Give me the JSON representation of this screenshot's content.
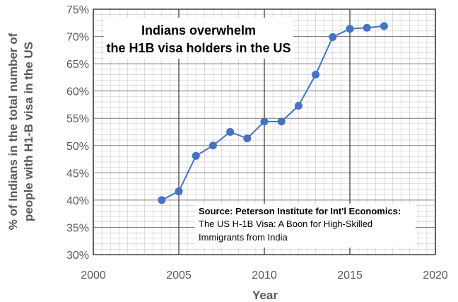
{
  "chart_data": {
    "type": "line",
    "title_lines": [
      "Indians overwhelm",
      "the H1B visa holders in the US"
    ],
    "xlabel": "Year",
    "ylabel_lines": [
      "% of Indians in the total number of",
      "people with H1-B visa in the US"
    ],
    "xlim": [
      2000,
      2020
    ],
    "ylim": [
      30,
      75
    ],
    "x_ticks": [
      2000,
      2005,
      2010,
      2015,
      2020
    ],
    "x_tick_labels": [
      "2000",
      "2005",
      "2010",
      "2015",
      "2020"
    ],
    "y_ticks": [
      30,
      35,
      40,
      45,
      50,
      55,
      60,
      65,
      70,
      75
    ],
    "y_tick_labels": [
      "30%",
      "35%",
      "40%",
      "45%",
      "50%",
      "55%",
      "60%",
      "65%",
      "70%",
      "75%"
    ],
    "grid": true,
    "series": [
      {
        "x": [
          2004,
          2005,
          2006,
          2007,
          2008,
          2009,
          2010,
          2011,
          2012,
          2013,
          2014,
          2015,
          2016,
          2017
        ],
        "y": [
          40.0,
          41.6,
          48.1,
          50.0,
          52.5,
          51.3,
          54.4,
          54.4,
          57.3,
          63.0,
          69.9,
          71.4,
          71.6,
          71.9
        ],
        "color": "#4472C4"
      }
    ],
    "annotation": {
      "bold_line": "Source: Peterson Institute for Int'l Economics:",
      "lines": [
        "The US H-1B Visa: A Boon for High-Skilled",
        "Immigrants from India"
      ]
    }
  }
}
